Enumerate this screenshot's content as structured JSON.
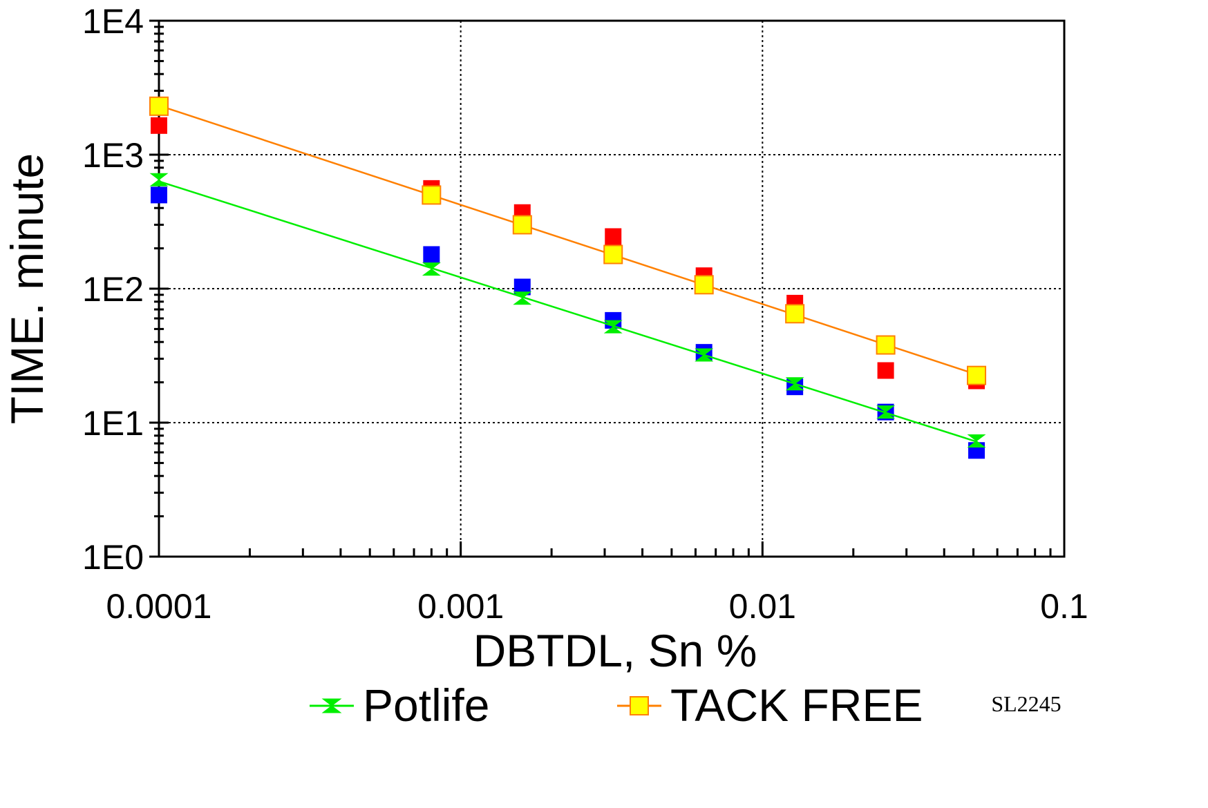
{
  "chart_data": {
    "type": "scatter",
    "x_scale": "log",
    "y_scale": "log",
    "xlim": [
      0.0001,
      0.1
    ],
    "ylim": [
      1,
      10000
    ],
    "xlabel": "DBTDL, Sn %",
    "ylabel": "TIME. minute",
    "x_ticks": [
      {
        "value": 0.0001,
        "label": "0.0001"
      },
      {
        "value": 0.001,
        "label": "0.001"
      },
      {
        "value": 0.01,
        "label": "0.01"
      },
      {
        "value": 0.1,
        "label": "0.1"
      }
    ],
    "y_ticks": [
      {
        "value": 1,
        "label": "1E0"
      },
      {
        "value": 10,
        "label": "1E1"
      },
      {
        "value": 100,
        "label": "1E2"
      },
      {
        "value": 1000,
        "label": "1E3"
      },
      {
        "value": 10000,
        "label": "1E4"
      }
    ],
    "grid": "dotted, major decades",
    "legend_position": "bottom",
    "note": "SL2245",
    "series": [
      {
        "name": "Potlife",
        "color": "#00ee00",
        "marker": "hourglass",
        "line": true,
        "x": [
          0.0001,
          0.0008,
          0.0016,
          0.0032,
          0.0064,
          0.0128,
          0.0256,
          0.0512
        ],
        "y": [
          650,
          140,
          85,
          52,
          32,
          19.5,
          12,
          7.3
        ]
      },
      {
        "name": "TACK FREE",
        "color": "#ff8000",
        "fill": "#ffff00",
        "marker": "square",
        "line": true,
        "x": [
          0.0001,
          0.0008,
          0.0016,
          0.0032,
          0.0064,
          0.0128,
          0.0256,
          0.0512
        ],
        "y": [
          2300,
          500,
          300,
          180,
          107,
          65,
          38,
          22.5
        ]
      },
      {
        "name": "",
        "color": "#ff0000",
        "marker": "square",
        "line": false,
        "x": [
          0.0001,
          0.0008,
          0.0016,
          0.0032,
          0.0064,
          0.0128,
          0.0256,
          0.0512
        ],
        "y": [
          1650,
          560,
          370,
          245,
          125,
          78,
          24.5,
          20.5
        ]
      },
      {
        "name": "",
        "color": "#0000ff",
        "marker": "square",
        "line": false,
        "x": [
          0.0001,
          0.0008,
          0.0016,
          0.0032,
          0.0064,
          0.0128,
          0.0256,
          0.0512
        ],
        "y": [
          500,
          180,
          103,
          58,
          33.5,
          18.5,
          12,
          6.2
        ]
      }
    ]
  }
}
